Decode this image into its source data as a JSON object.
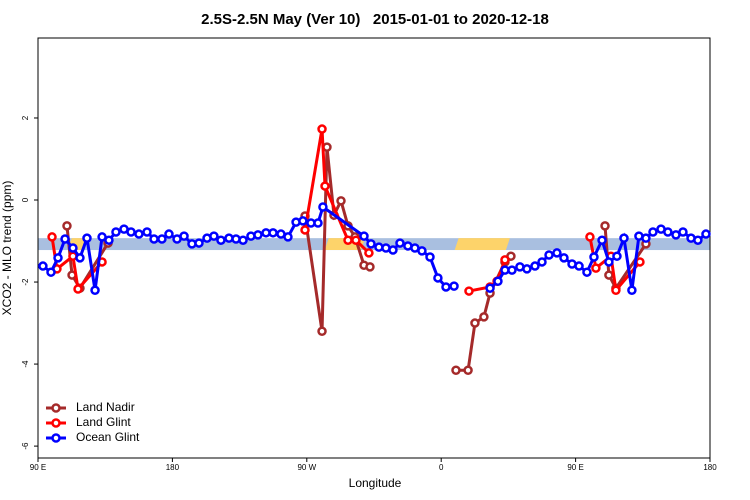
{
  "chart_data": {
    "type": "line",
    "title": "2.5S-2.5N May (Ver 10)   2015-01-01 to 2020-12-18",
    "x_label": "Longitude",
    "y_label": "XCO2 - MLO trend (ppm)",
    "xlim": [
      90,
      540
    ],
    "xticks": [
      {
        "value": 90,
        "label": "90 E"
      },
      180,
      {
        "value": 270,
        "label": "90 W"
      },
      {
        "value": 360,
        "label": "0"
      },
      {
        "value": 450,
        "label": "90 E"
      },
      {
        "value": 540,
        "label": "180"
      }
    ],
    "ylim": [
      -6.29,
      3.95
    ],
    "yticks": [
      2,
      0,
      -2,
      -4,
      -6
    ],
    "legend": "bottom-left",
    "band": {
      "ymin": -1.22,
      "ymax": -0.93,
      "color": "#a9bfe0"
    },
    "highlights": {
      "color": "#fdd36a",
      "ranges": [
        [
          110,
          123.5
        ],
        [
          282,
          309
        ],
        [
          369,
          406
        ]
      ]
    },
    "series": [
      {
        "name": "Land Nadir",
        "color": "#a52a2a",
        "x": [
          109.4,
          112.8,
          118.1,
          136.9,
          null,
          268.8,
          280.2,
          283.5,
          288.2,
          292.9,
          297.6,
          302.3,
          308.3,
          312.3,
          null,
          369.9,
          378.0,
          382.6,
          388.6,
          392.7,
          402.7,
          406.7,
          null,
          469.7,
          472.3,
          477.0,
          497.1
        ],
        "values": [
          -0.63,
          -1.83,
          -2.15,
          -1.05,
          null,
          -0.39,
          -3.2,
          1.29,
          -0.37,
          -0.02,
          -0.63,
          -0.9,
          -1.59,
          -1.63,
          null,
          -4.15,
          -4.15,
          -3.0,
          -2.85,
          -2.27,
          -1.51,
          -1.37,
          null,
          -0.63,
          -1.83,
          -2.15,
          -1.07
        ]
      },
      {
        "name": "Land Glint",
        "color": "#ff0000",
        "x": [
          99.4,
          102.7,
          113.4,
          116.8,
          132.9,
          null,
          268.8,
          280.2,
          282.2,
          297.6,
          302.9,
          311.6,
          null,
          378.6,
          392.7,
          397.4,
          402.7,
          null,
          459.6,
          463.6,
          473.7,
          477.0,
          493.1
        ],
        "values": [
          -0.9,
          -1.68,
          -1.37,
          -2.17,
          -1.51,
          null,
          -0.73,
          1.73,
          0.34,
          -0.98,
          -0.98,
          -1.29,
          null,
          -2.22,
          -2.12,
          -1.98,
          -1.46,
          null,
          -0.9,
          -1.66,
          -1.37,
          -2.2,
          -1.51
        ]
      },
      {
        "name": "Ocean Glint",
        "color": "#0000ff",
        "x": [
          93.3,
          98.7,
          103.4,
          108.1,
          113.4,
          118.1,
          122.8,
          128.2,
          132.9,
          137.5,
          142.2,
          147.6,
          152.3,
          157.6,
          163.0,
          167.7,
          173.0,
          177.7,
          183.1,
          187.8,
          193.1,
          197.8,
          203.2,
          207.8,
          212.5,
          217.9,
          222.6,
          227.3,
          232.6,
          237.3,
          242.7,
          247.4,
          252.7,
          257.4,
          262.8,
          267.4,
          272.8,
          277.5,
          280.8,
          308.3,
          313.0,
          318.3,
          323.0,
          327.7,
          332.4,
          337.7,
          342.4,
          347.1,
          352.5,
          357.8,
          363.2,
          368.6,
          null,
          392.7,
          398.0,
          402.7,
          407.4,
          412.7,
          417.4,
          422.8,
          427.5,
          432.2,
          437.5,
          442.2,
          447.6,
          452.3,
          457.6,
          462.3,
          467.7,
          472.3,
          477.7,
          482.4,
          487.7,
          492.4,
          497.1,
          501.8,
          507.2,
          511.8,
          517.2,
          521.9,
          527.3,
          531.9,
          537.3
        ],
        "values": [
          -1.61,
          -1.76,
          -1.41,
          -0.95,
          -1.17,
          -1.41,
          -0.93,
          -2.2,
          -0.9,
          -0.98,
          -0.78,
          -0.71,
          -0.78,
          -0.83,
          -0.78,
          -0.95,
          -0.95,
          -0.83,
          -0.95,
          -0.88,
          -1.07,
          -1.05,
          -0.93,
          -0.88,
          -0.98,
          -0.93,
          -0.95,
          -0.98,
          -0.88,
          -0.85,
          -0.8,
          -0.8,
          -0.83,
          -0.9,
          -0.54,
          -0.51,
          -0.56,
          -0.56,
          -0.17,
          -0.88,
          -1.07,
          -1.15,
          -1.17,
          -1.22,
          -1.05,
          -1.12,
          -1.17,
          -1.24,
          -1.39,
          -1.9,
          -2.12,
          -2.1,
          null,
          -2.15,
          -1.98,
          -1.71,
          -1.71,
          -1.63,
          -1.68,
          -1.61,
          -1.51,
          -1.34,
          -1.29,
          -1.41,
          -1.56,
          -1.61,
          -1.76,
          -1.39,
          -0.98,
          -1.51,
          -1.37,
          -0.93,
          -2.2,
          -0.88,
          -0.93,
          -0.78,
          -0.71,
          -0.78,
          -0.85,
          -0.78,
          -0.93,
          -0.98,
          -0.83
        ]
      }
    ]
  }
}
